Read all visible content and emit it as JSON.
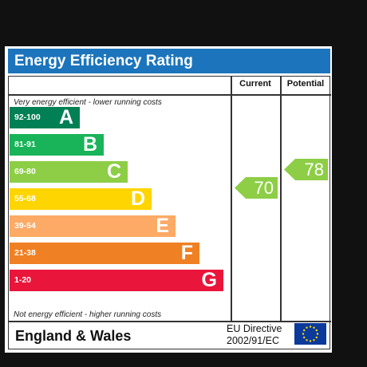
{
  "title": "Energy Efficiency Rating",
  "columns": {
    "current": "Current",
    "potential": "Potential"
  },
  "top_note": "Very energy efficient - lower running costs",
  "bottom_note": "Not energy efficient - higher running costs",
  "bands": [
    {
      "range": "92-100",
      "letter": "A",
      "color": "#008054"
    },
    {
      "range": "81-91",
      "letter": "B",
      "color": "#19b459"
    },
    {
      "range": "69-80",
      "letter": "C",
      "color": "#8dce46"
    },
    {
      "range": "55-68",
      "letter": "D",
      "color": "#ffd500"
    },
    {
      "range": "39-54",
      "letter": "E",
      "color": "#fcaa65"
    },
    {
      "range": "21-38",
      "letter": "F",
      "color": "#ef8023"
    },
    {
      "range": "1-20",
      "letter": "G",
      "color": "#e9153b"
    }
  ],
  "ratings": {
    "current": {
      "value": "70",
      "color": "#8dce46"
    },
    "potential": {
      "value": "78",
      "color": "#8dce46"
    }
  },
  "footer": {
    "region": "England & Wales",
    "directive_line1": "EU Directive",
    "directive_line2": "2002/91/EC"
  }
}
